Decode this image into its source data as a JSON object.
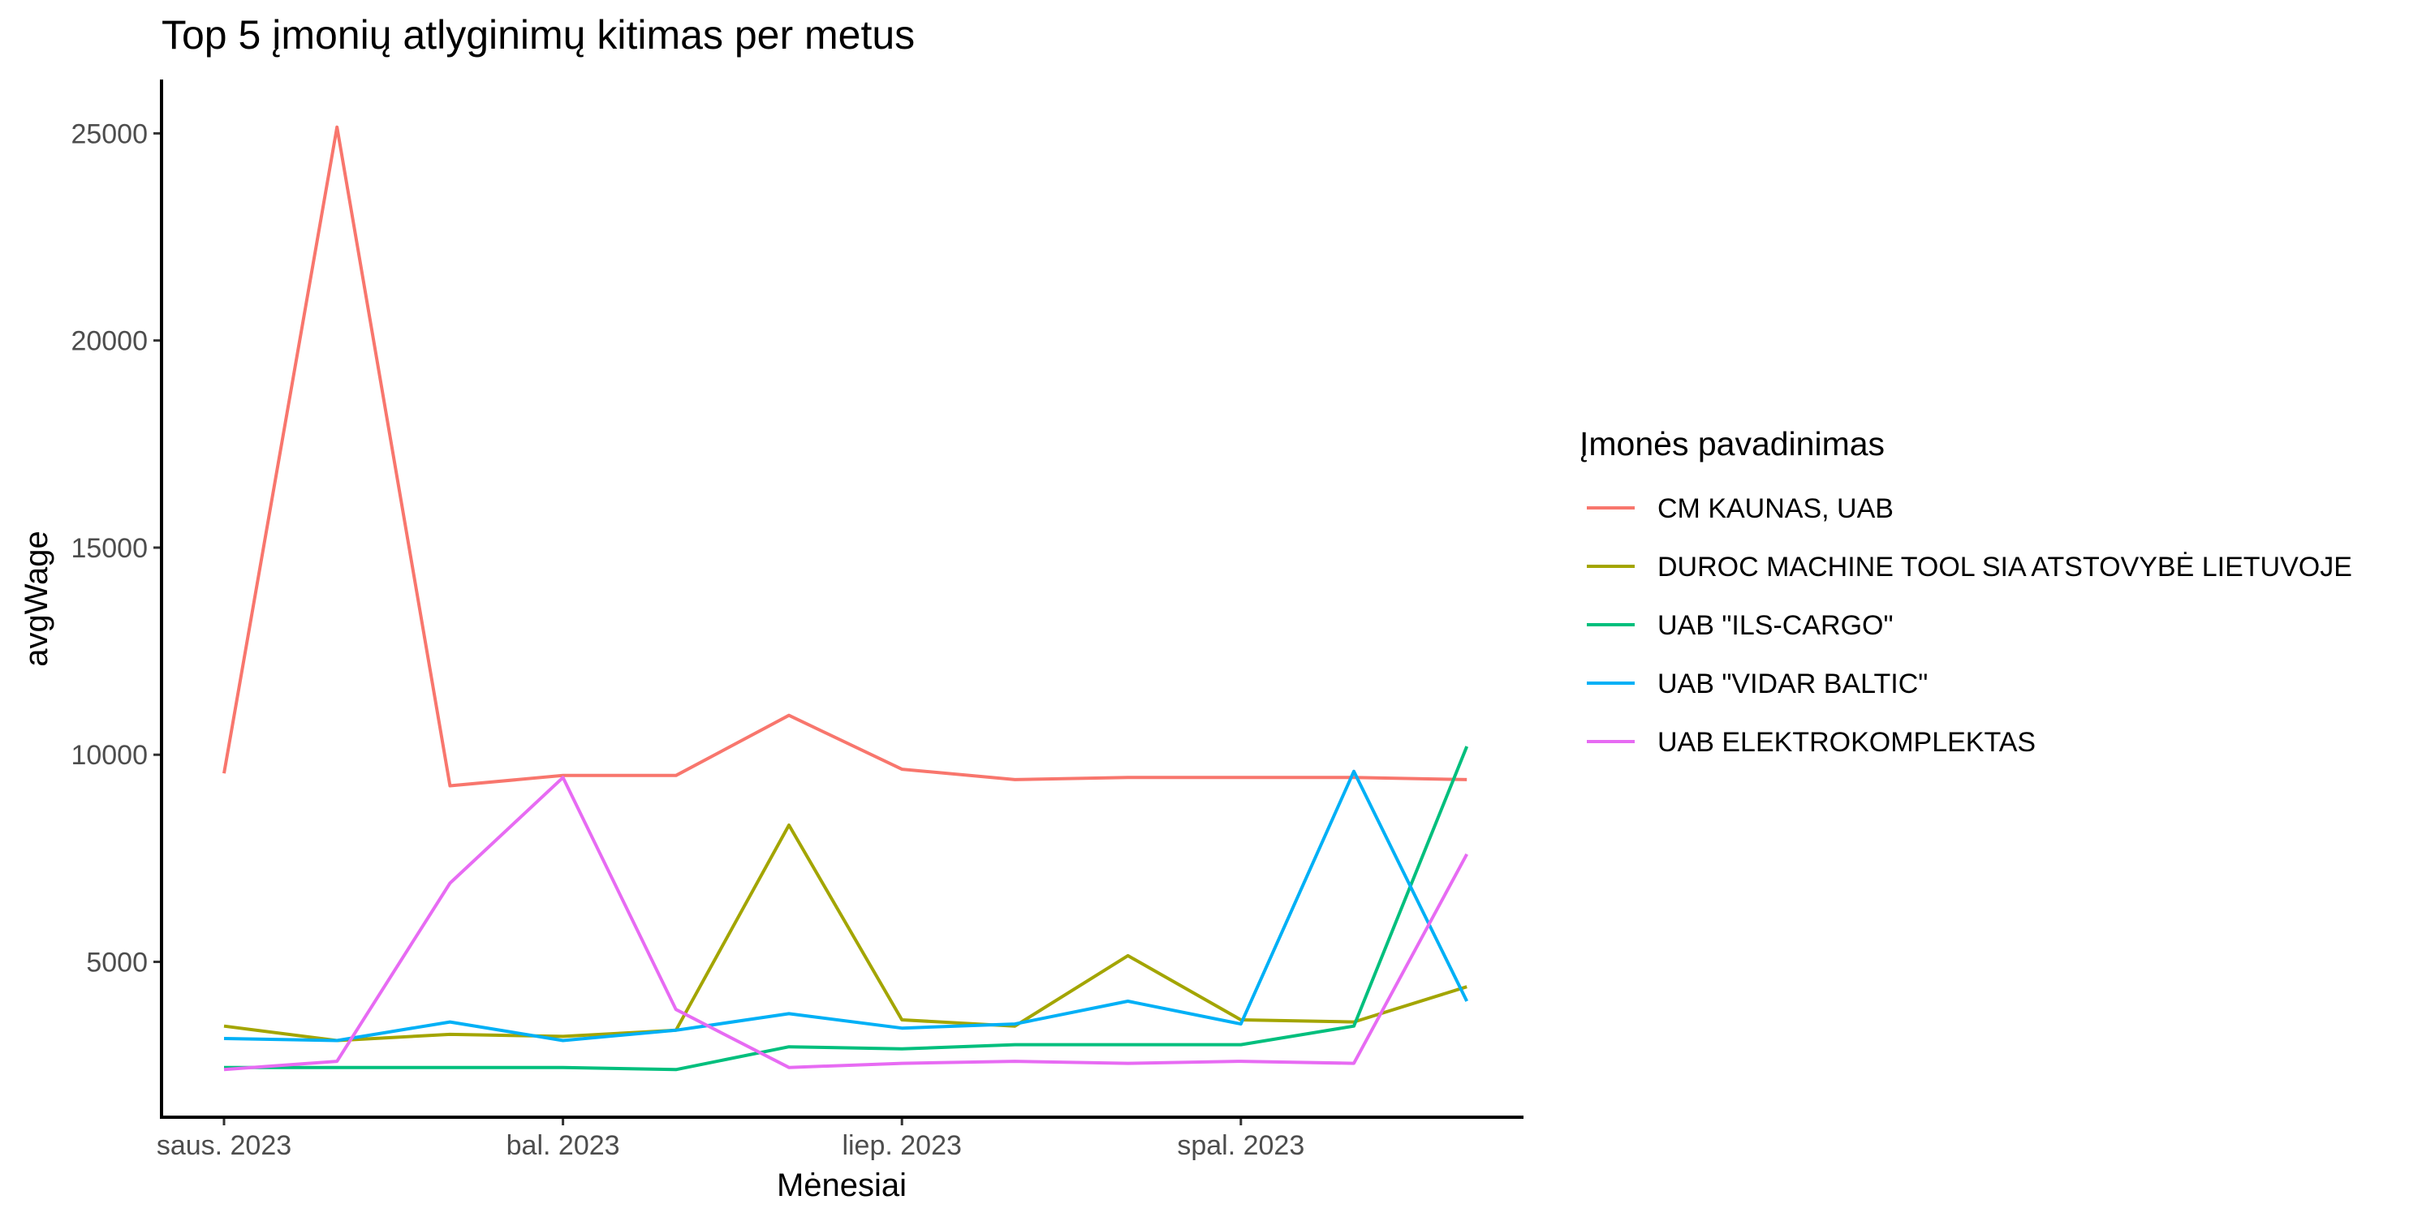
{
  "chart_data": {
    "type": "line",
    "title": "Top 5 įmonių atlyginimų kitimas per metus",
    "xlabel": "Mėnesiai",
    "ylabel": "avgWage",
    "x": [
      "2023-01",
      "2023-02",
      "2023-03",
      "2023-04",
      "2023-05",
      "2023-06",
      "2023-07",
      "2023-08",
      "2023-09",
      "2023-10",
      "2023-11",
      "2023-12"
    ],
    "x_ticks": [
      {
        "x": "2023-01",
        "label": "saus. 2023"
      },
      {
        "x": "2023-04",
        "label": "bal. 2023"
      },
      {
        "x": "2023-07",
        "label": "liep. 2023"
      },
      {
        "x": "2023-10",
        "label": "spal. 2023"
      }
    ],
    "y_ticks": [
      5000,
      10000,
      15000,
      20000,
      25000
    ],
    "ylim": [
      1250,
      26300
    ],
    "grid": false,
    "legend_title": "Įmonės pavadinimas",
    "legend_position": "right",
    "series": [
      {
        "name": "CM KAUNAS, UAB",
        "color": "#F8766D",
        "values": [
          9550,
          25150,
          9250,
          9500,
          9500,
          10950,
          9650,
          9400,
          9450,
          9450,
          9450,
          9400
        ]
      },
      {
        "name": "DUROC MACHINE TOOL SIA ATSTOVYBĖ LIETUVOJE",
        "color": "#A3A500",
        "values": [
          3450,
          3100,
          3250,
          3200,
          3350,
          8300,
          3600,
          3450,
          5150,
          3600,
          3550,
          4400
        ]
      },
      {
        "name": "UAB \"ILS-CARGO\"",
        "color": "#00BF7D",
        "values": [
          2450,
          2450,
          2450,
          2450,
          2400,
          2950,
          2900,
          3000,
          3000,
          3000,
          3450,
          10200
        ]
      },
      {
        "name": "UAB \"VIDAR BALTIC\"",
        "color": "#00B0F6",
        "values": [
          3150,
          3100,
          3550,
          3100,
          3350,
          3750,
          3400,
          3500,
          4050,
          3500,
          9600,
          4050
        ]
      },
      {
        "name": "UAB ELEKTROKOMPLEKTAS",
        "color": "#E76BF3",
        "values": [
          2400,
          2600,
          6900,
          9450,
          3850,
          2450,
          2550,
          2600,
          2550,
          2600,
          2550,
          7600
        ]
      }
    ]
  }
}
